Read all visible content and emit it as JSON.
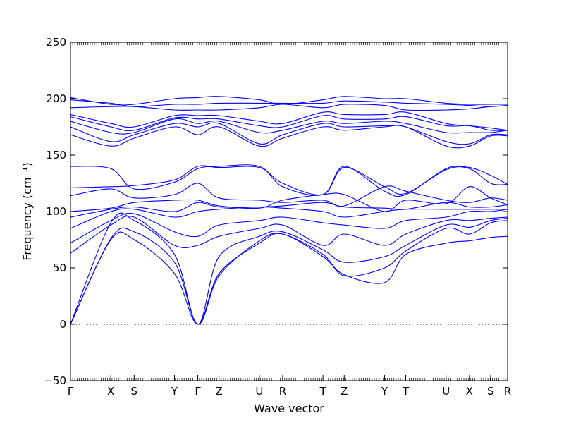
{
  "chart_data": {
    "type": "line",
    "xlabel": "Wave vector",
    "ylabel": "Frequency (cm⁻¹)",
    "ylim": [
      -50,
      250
    ],
    "yticks": [
      -50,
      0,
      50,
      100,
      150,
      200,
      250
    ],
    "xlim": [
      0,
      20.6
    ],
    "xticks": [
      {
        "label": "Γ",
        "x": 0
      },
      {
        "label": "X",
        "x": 1.9
      },
      {
        "label": "S",
        "x": 3.0
      },
      {
        "label": "Y",
        "x": 4.9
      },
      {
        "label": "Γ",
        "x": 6.0
      },
      {
        "label": "Z",
        "x": 7.0
      },
      {
        "label": "U",
        "x": 8.9
      },
      {
        "label": "R",
        "x": 10.0
      },
      {
        "label": "T",
        "x": 11.9
      },
      {
        "label": "Z",
        "x": 12.9
      },
      {
        "label": "Y",
        "x": 14.8
      },
      {
        "label": "T",
        "x": 15.8
      },
      {
        "label": "U",
        "x": 17.7
      },
      {
        "label": "X",
        "x": 18.8
      },
      {
        "label": "S",
        "x": 19.8
      },
      {
        "label": "R",
        "x": 20.6
      }
    ],
    "zero_line": true,
    "line_color": "#0000ff",
    "series": [
      {
        "x": [
          0,
          1.9,
          3.0,
          4.9,
          6.0,
          7.0,
          8.9,
          10.0,
          11.9,
          12.9,
          14.8,
          15.8,
          17.7,
          18.8,
          19.8,
          20.6
        ],
        "y": [
          0,
          75,
          75,
          45,
          0,
          45,
          72,
          80,
          60,
          44,
          37,
          62,
          72,
          74,
          77,
          78
        ]
      },
      {
        "x": [
          0,
          1.9,
          3.0,
          4.9,
          6.0,
          7.0,
          8.9,
          10.0,
          11.9,
          12.9,
          14.8,
          15.8,
          17.7,
          18.8,
          19.8,
          20.6
        ],
        "y": [
          0,
          76,
          82,
          55,
          0,
          43,
          74,
          80,
          62,
          43,
          50,
          65,
          85,
          80,
          90,
          92
        ]
      },
      {
        "x": [
          0,
          1.9,
          3.0,
          4.9,
          6.0,
          7.0,
          8.9,
          10.0,
          11.9,
          12.9,
          14.8,
          15.8,
          17.7,
          18.8,
          19.8,
          20.6
        ],
        "y": [
          0,
          90,
          92,
          62,
          0,
          60,
          78,
          82,
          66,
          55,
          60,
          70,
          88,
          86,
          92,
          94
        ]
      },
      {
        "x": [
          0,
          1.9,
          3.0,
          4.9,
          6.0,
          7.0,
          8.9,
          10.0,
          11.9,
          12.9,
          14.8,
          15.8,
          17.7,
          18.8,
          19.8,
          20.6
        ],
        "y": [
          63,
          88,
          95,
          70,
          70,
          78,
          85,
          88,
          70,
          80,
          70,
          80,
          92,
          92,
          94,
          95
        ]
      },
      {
        "x": [
          0,
          1.9,
          3.0,
          4.9,
          6.0,
          7.0,
          8.9,
          10.0,
          11.9,
          12.9,
          14.8,
          15.8,
          17.7,
          18.8,
          19.8,
          20.6
        ],
        "y": [
          72,
          92,
          98,
          82,
          78,
          88,
          92,
          95,
          90,
          88,
          85,
          92,
          95,
          100,
          100,
          102
        ]
      },
      {
        "x": [
          0,
          1.9,
          3.0,
          4.9,
          6.0,
          7.0,
          8.9,
          10.0,
          11.9,
          12.9,
          14.8,
          15.8,
          17.7,
          18.8,
          19.8,
          20.6
        ],
        "y": [
          85,
          100,
          102,
          95,
          100,
          102,
          104,
          103,
          100,
          95,
          100,
          102,
          102,
          102,
          102,
          102
        ]
      },
      {
        "x": [
          0,
          1.9,
          3.0,
          4.9,
          6.0,
          7.0,
          8.9,
          10.0,
          11.9,
          12.9,
          14.8,
          15.8,
          17.7,
          18.8,
          19.8,
          20.6
        ],
        "y": [
          95,
          102,
          104,
          100,
          108,
          104,
          104,
          105,
          108,
          104,
          103,
          102,
          108,
          104,
          104,
          106
        ]
      },
      {
        "x": [
          0,
          1.9,
          3.0,
          4.9,
          6.0,
          7.0,
          8.9,
          10.0,
          11.9,
          12.9,
          14.8,
          15.8,
          17.7,
          18.8,
          19.8,
          20.6
        ],
        "y": [
          100,
          103,
          108,
          110,
          110,
          105,
          103,
          110,
          115,
          115,
          100,
          110,
          107,
          122,
          112,
          106
        ]
      },
      {
        "x": [
          0,
          1.9,
          3.0,
          4.9,
          6.0,
          7.0,
          8.9,
          10.0,
          11.9,
          12.9,
          14.8,
          15.8,
          17.7,
          18.8,
          19.8,
          20.6
        ],
        "y": [
          114,
          120,
          112,
          115,
          125,
          112,
          110,
          108,
          110,
          105,
          122,
          118,
          110,
          108,
          112,
          110
        ]
      },
      {
        "x": [
          0,
          1.9,
          3.0,
          4.9,
          6.0,
          7.0,
          8.9,
          10.0,
          11.9,
          12.9,
          14.8,
          15.8,
          17.7,
          18.8,
          19.8,
          20.6
        ],
        "y": [
          121,
          122,
          123,
          128,
          140,
          139,
          139,
          125,
          115,
          139,
          122,
          116,
          137,
          138,
          125,
          124
        ]
      },
      {
        "x": [
          0,
          1.9,
          3.0,
          4.9,
          6.0,
          7.0,
          8.9,
          10.0,
          11.9,
          12.9,
          14.8,
          15.8,
          17.7,
          18.8,
          19.8,
          20.6
        ],
        "y": [
          140,
          138,
          120,
          126,
          138,
          140,
          140,
          122,
          115,
          140,
          118,
          115,
          138,
          139,
          132,
          124
        ]
      },
      {
        "x": [
          0,
          1.9,
          3.0,
          4.9,
          6.0,
          7.0,
          8.9,
          10.0,
          11.9,
          12.9,
          14.8,
          15.8,
          17.7,
          18.8,
          19.8,
          20.6
        ],
        "y": [
          168,
          158,
          165,
          175,
          168,
          175,
          158,
          165,
          175,
          172,
          175,
          175,
          158,
          158,
          167,
          167
        ]
      },
      {
        "x": [
          0,
          1.9,
          3.0,
          4.9,
          6.0,
          7.0,
          8.9,
          10.0,
          11.9,
          12.9,
          14.8,
          15.8,
          17.7,
          18.8,
          19.8,
          20.6
        ],
        "y": [
          175,
          162,
          168,
          178,
          175,
          178,
          160,
          168,
          178,
          175,
          176,
          175,
          162,
          160,
          168,
          168
        ]
      },
      {
        "x": [
          0,
          1.9,
          3.0,
          4.9,
          6.0,
          7.0,
          8.9,
          10.0,
          11.9,
          12.9,
          14.8,
          15.8,
          17.7,
          18.8,
          19.8,
          20.6
        ],
        "y": [
          180,
          170,
          170,
          182,
          178,
          180,
          170,
          172,
          180,
          178,
          180,
          178,
          170,
          170,
          170,
          172
        ]
      },
      {
        "x": [
          0,
          1.9,
          3.0,
          4.9,
          6.0,
          7.0,
          8.9,
          10.0,
          11.9,
          12.9,
          14.8,
          15.8,
          17.7,
          18.8,
          19.8,
          20.6
        ],
        "y": [
          184,
          175,
          172,
          183,
          182,
          182,
          176,
          175,
          185,
          182,
          182,
          184,
          176,
          176,
          172,
          172
        ]
      },
      {
        "x": [
          0,
          1.9,
          3.0,
          4.9,
          6.0,
          7.0,
          8.9,
          10.0,
          11.9,
          12.9,
          14.8,
          15.8,
          17.7,
          18.8,
          19.8,
          20.6
        ],
        "y": [
          186,
          178,
          175,
          185,
          185,
          185,
          180,
          178,
          188,
          186,
          186,
          188,
          178,
          176,
          174,
          172
        ]
      },
      {
        "x": [
          0,
          1.9,
          3.0,
          4.9,
          6.0,
          7.0,
          8.9,
          10.0,
          11.9,
          12.9,
          14.8,
          15.8,
          17.7,
          18.8,
          19.8,
          20.6
        ],
        "y": [
          192,
          193,
          193,
          190,
          190,
          190,
          192,
          195,
          192,
          195,
          194,
          190,
          190,
          191,
          193,
          194
        ]
      },
      {
        "x": [
          0,
          1.9,
          3.0,
          4.9,
          6.0,
          7.0,
          8.9,
          10.0,
          11.9,
          12.9,
          14.8,
          15.8,
          17.7,
          18.8,
          19.8,
          20.6
        ],
        "y": [
          199,
          196,
          193,
          195,
          195,
          196,
          196,
          196,
          196,
          198,
          197,
          196,
          195,
          194,
          193,
          194
        ]
      },
      {
        "x": [
          0,
          1.9,
          3.0,
          4.9,
          6.0,
          7.0,
          8.9,
          10.0,
          11.9,
          12.9,
          14.8,
          15.8,
          17.7,
          18.8,
          19.8,
          20.6
        ],
        "y": [
          201,
          195,
          195,
          200,
          201,
          202,
          199,
          195,
          199,
          202,
          200,
          200,
          196,
          195,
          195,
          195
        ]
      }
    ]
  }
}
